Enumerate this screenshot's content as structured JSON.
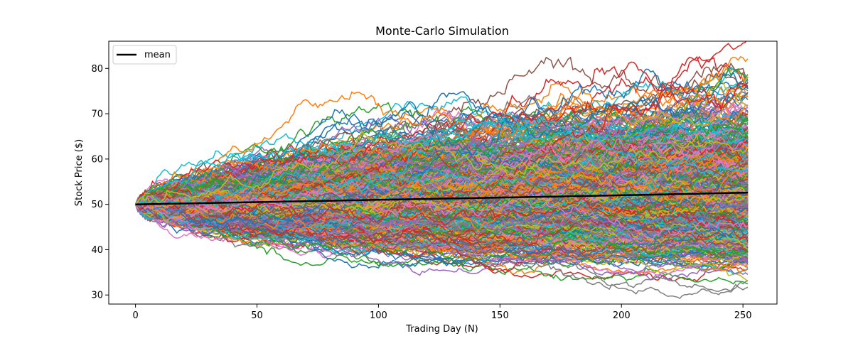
{
  "chart_data": {
    "type": "line",
    "title": "Monte-Carlo Simulation",
    "xlabel": "Trading Day (N)",
    "ylabel": "Stock Price ($)",
    "xlim": [
      -11,
      264
    ],
    "ylim": [
      28,
      86
    ],
    "x_ticks": [
      0,
      50,
      100,
      150,
      200,
      250
    ],
    "y_ticks": [
      30,
      40,
      50,
      60,
      70,
      80
    ],
    "grid": false,
    "legend": {
      "position": "top-left",
      "entries": [
        "mean"
      ]
    },
    "simulation": {
      "start_price": 50,
      "trading_days": 252,
      "path_count": 1000,
      "drift_per_day": 0.0002,
      "volatility_per_day": 0.01
    },
    "mean_series": {
      "name": "mean",
      "color": "#000000",
      "x": [
        0,
        50,
        100,
        150,
        200,
        252
      ],
      "values": [
        50.0,
        50.5,
        51.0,
        51.5,
        52.0,
        52.6
      ]
    },
    "colors": [
      "#1f77b4",
      "#ff7f0e",
      "#2ca02c",
      "#d62728",
      "#9467bd",
      "#8c564b",
      "#e377c2",
      "#7f7f7f",
      "#bcbd22",
      "#17becf"
    ]
  }
}
